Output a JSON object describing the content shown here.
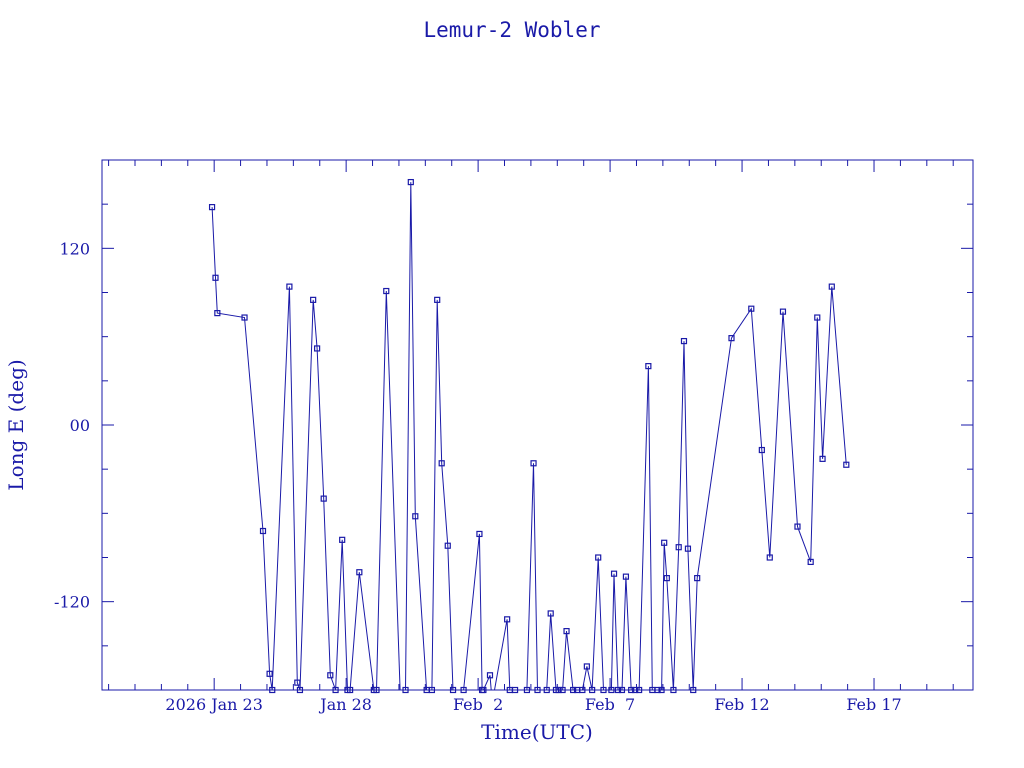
{
  "chart_data": {
    "type": "line",
    "title": "Lemur-2 Wobler",
    "xlabel": "Time(UTC)",
    "ylabel": "Long E (deg)",
    "x_unit": "days of 2026 (Jan 23 = 23)",
    "xlim": [
      18.75,
      51.75
    ],
    "ylim": [
      -180,
      180
    ],
    "x_ticks": [
      {
        "x": 23,
        "label": "2026 Jan 23"
      },
      {
        "x": 28,
        "label": "Jan 28"
      },
      {
        "x": 33,
        "label": "Feb  2"
      },
      {
        "x": 38,
        "label": "Feb  7"
      },
      {
        "x": 43,
        "label": "Feb 12"
      },
      {
        "x": 48,
        "label": "Feb 17"
      }
    ],
    "y_ticks": [
      {
        "y": 120,
        "label": "120"
      },
      {
        "y": 0,
        "label": "00"
      },
      {
        "y": -120,
        "label": "-120"
      }
    ],
    "grid": false,
    "color": "#1a1aa8",
    "series": [
      {
        "x": [
          22.92,
          23.05,
          23.12,
          24.15,
          24.85,
          25.1,
          25.2,
          25.85,
          26.15,
          26.25,
          26.75,
          26.9,
          27.15,
          27.4,
          27.6,
          27.85,
          28.05,
          28.15,
          28.5,
          29.05,
          29.15,
          29.52,
          30.05,
          30.25,
          30.45,
          30.62,
          31.05,
          31.25,
          31.45,
          31.62,
          31.85,
          32.05,
          32.45,
          33.05,
          33.15,
          33.2,
          33.45,
          33.52,
          33.6,
          34.1,
          34.2,
          34.4,
          34.75,
          34.85,
          35.1,
          35.25,
          35.6,
          35.75,
          35.95,
          36.05,
          36.2,
          36.35,
          36.6,
          36.75,
          36.95,
          37.12,
          37.32,
          37.55,
          37.75,
          38.05,
          38.15,
          38.3,
          38.45,
          38.6,
          38.8,
          38.95,
          39.1,
          39.45,
          39.6,
          39.8,
          39.95,
          40.05,
          40.15,
          40.4,
          40.6,
          40.8,
          40.95,
          41.15,
          41.3,
          42.6,
          43.35,
          43.75,
          44.05,
          44.55,
          45.1,
          45.6,
          45.85,
          46.05,
          46.4,
          46.95
        ],
        "y": [
          148,
          100,
          76,
          73,
          -72,
          -169,
          -180,
          94,
          -175,
          -180,
          85,
          52,
          -50,
          -170,
          -180,
          -78,
          -180,
          -180,
          -100,
          -180,
          -180,
          91,
          -184,
          -180,
          165,
          -62,
          -180,
          -180,
          85,
          -26,
          -82,
          -180,
          -180,
          -74,
          -180,
          -180,
          -170,
          -185,
          -182,
          -132,
          -180,
          -180,
          -186,
          -180,
          -26,
          -180,
          -180,
          -128,
          -180,
          -180,
          -180,
          -140,
          -180,
          -180,
          -180,
          -164,
          -180,
          -90,
          -180,
          -180,
          -101,
          -180,
          -180,
          -103,
          -180,
          -180,
          -180,
          40,
          -180,
          -180,
          -180,
          -80,
          -104,
          -180,
          -83,
          57,
          -84,
          -180,
          -104,
          59,
          79,
          -17,
          -90,
          77,
          -69,
          -93,
          73,
          -23,
          94,
          -27
        ]
      }
    ]
  }
}
